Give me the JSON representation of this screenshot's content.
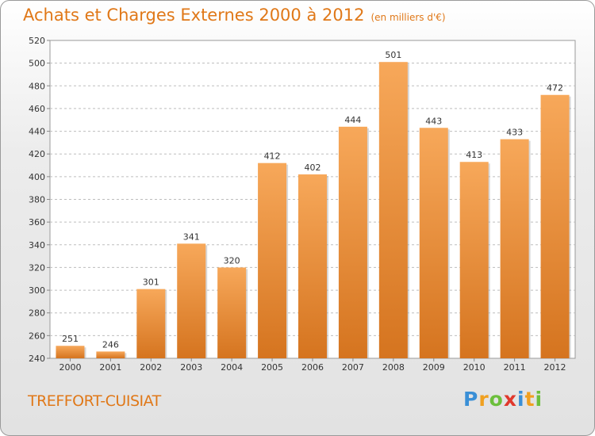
{
  "title": "Achats et Charges Externes 2000 à 2012",
  "subtitle": "(en milliers d'€)",
  "commune": "TREFFORT-CUISIAT",
  "logo": {
    "letters": [
      "P",
      "r",
      "o",
      "x",
      "i",
      "t",
      "i"
    ],
    "colors": [
      "#3a8fd6",
      "#f0a020",
      "#6cbf3c",
      "#e0382c",
      "#3a8fd6",
      "#f0a020",
      "#6cbf3c"
    ]
  },
  "colors": {
    "bar_top": "#f7a85a",
    "bar_bottom": "#d5741f",
    "accent": "#e07818",
    "grid": "#bdbdbd"
  },
  "chart_data": {
    "type": "bar",
    "categories": [
      "2000",
      "2001",
      "2002",
      "2003",
      "2004",
      "2005",
      "2006",
      "2007",
      "2008",
      "2009",
      "2010",
      "2011",
      "2012"
    ],
    "values": [
      251,
      246,
      301,
      341,
      320,
      412,
      402,
      444,
      501,
      443,
      413,
      433,
      472
    ],
    "ylim": [
      240,
      520
    ],
    "yticks": [
      240,
      260,
      280,
      300,
      320,
      340,
      360,
      380,
      400,
      420,
      440,
      460,
      480,
      500,
      520
    ],
    "grid": "horizontal dashed",
    "data_labels": true
  }
}
